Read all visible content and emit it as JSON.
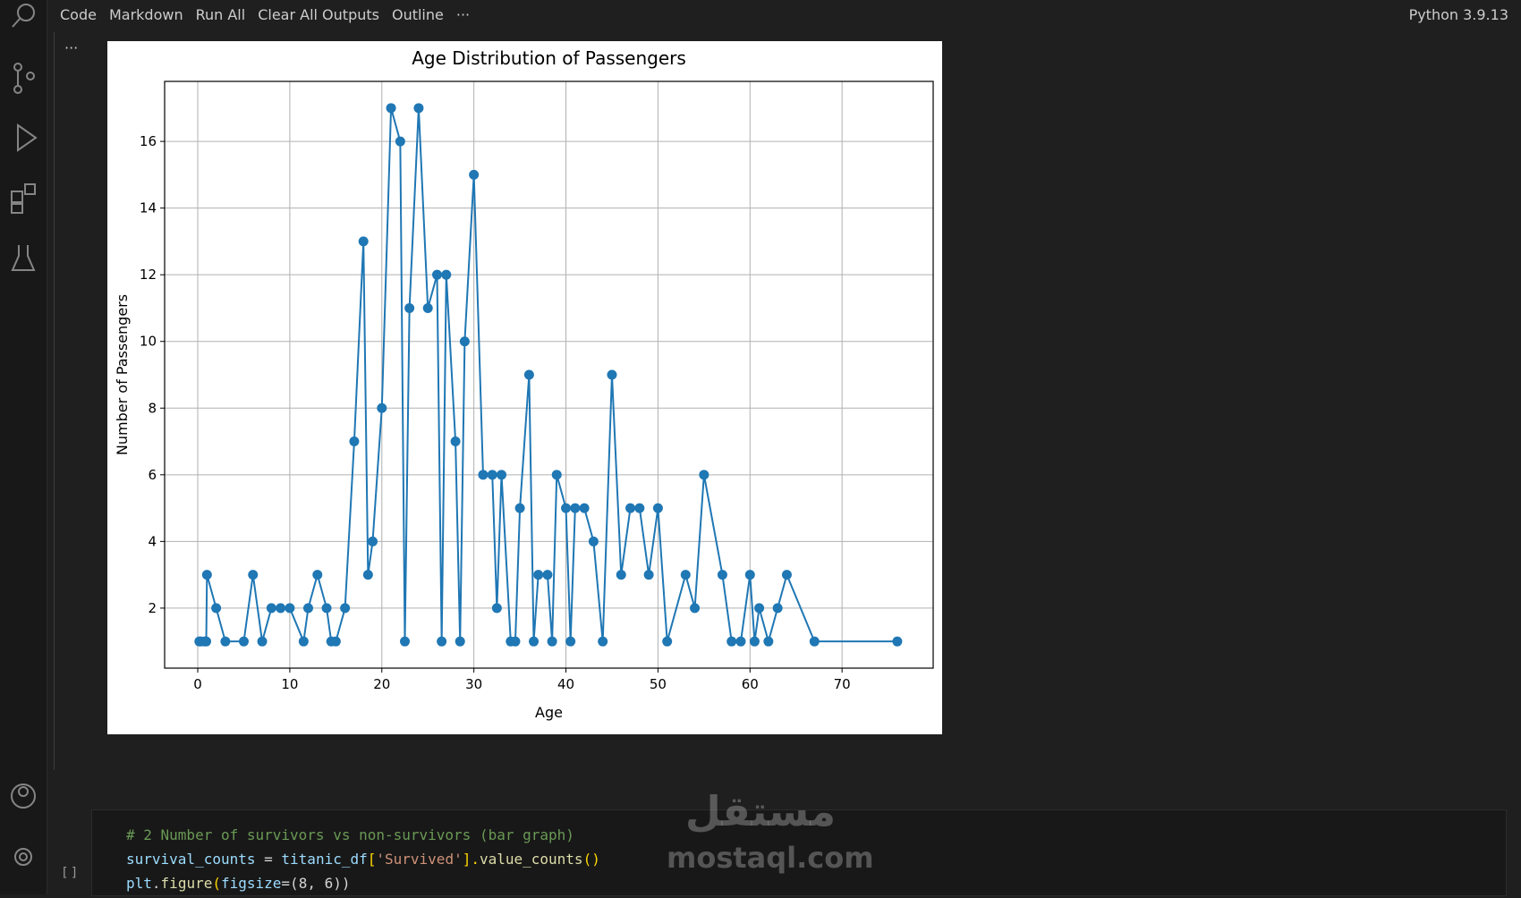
{
  "toolbar": {
    "items": [
      "Code",
      "Markdown",
      "Run All",
      "Clear All Outputs",
      "Outline"
    ],
    "more": "···",
    "kernel": "Python 3.9.13"
  },
  "output_more": "···",
  "chart_data": {
    "type": "line",
    "title": "Age Distribution of Passengers",
    "x_label": "Age",
    "y_label": "Number of Passengers",
    "x": [
      0.17,
      0.33,
      0.75,
      0.92,
      1,
      2,
      3,
      5,
      6,
      7,
      8,
      9,
      10,
      11.5,
      12,
      13,
      14,
      14.5,
      15,
      16,
      17,
      18,
      18.5,
      19,
      20,
      21,
      22,
      22.5,
      23,
      24,
      25,
      26,
      26.5,
      27,
      28,
      28.5,
      29,
      30,
      31,
      32,
      32.5,
      33,
      34,
      34.5,
      35,
      36,
      36.5,
      37,
      38,
      38.5,
      39,
      40,
      40.5,
      41,
      42,
      43,
      44,
      45,
      46,
      47,
      48,
      49,
      50,
      51,
      53,
      54,
      55,
      57,
      58,
      59,
      60,
      60.5,
      61,
      62,
      63,
      64,
      67,
      76
    ],
    "series": [
      {
        "name": "Age",
        "color": "#1f77b4",
        "values": [
          1,
          1,
          1,
          1,
          3,
          2,
          1,
          1,
          3,
          1,
          2,
          2,
          2,
          1,
          2,
          3,
          2,
          1,
          1,
          2,
          7,
          13,
          3,
          4,
          8,
          17,
          16,
          1,
          11,
          17,
          11,
          12,
          1,
          12,
          7,
          1,
          10,
          15,
          6,
          6,
          2,
          6,
          1,
          1,
          5,
          9,
          1,
          3,
          3,
          1,
          6,
          5,
          1,
          5,
          5,
          4,
          1,
          9,
          3,
          5,
          5,
          3,
          5,
          1,
          3,
          2,
          6,
          3,
          1,
          1,
          3,
          1,
          2,
          1,
          2,
          3,
          1,
          1
        ]
      }
    ],
    "xlim": [
      -3.6,
      79.9
    ],
    "ylim": [
      0.2,
      17.8
    ],
    "xticks": [
      0,
      10,
      20,
      30,
      40,
      50,
      60,
      70
    ],
    "yticks": [
      2,
      4,
      6,
      8,
      10,
      12,
      14,
      16
    ],
    "grid": true
  },
  "cell": {
    "status": "[ ]",
    "lines": [
      [
        {
          "text": "# 2 Number of survivors vs non-survivors (bar graph)",
          "color": "#6a9955"
        }
      ],
      [
        {
          "text": "survival_counts",
          "color": "#9cdcfe"
        },
        {
          "text": " = ",
          "color": "#d4d4d4"
        },
        {
          "text": "titanic_df",
          "color": "#9cdcfe"
        },
        {
          "text": "[",
          "color": "#ffd700"
        },
        {
          "text": "'Survived'",
          "color": "#ce9178"
        },
        {
          "text": "].",
          "color": "#ffd700"
        },
        {
          "text": "value_counts",
          "color": "#dcdcaa"
        },
        {
          "text": "()",
          "color": "#ffd700"
        }
      ],
      [
        {
          "text": "plt",
          "color": "#9cdcfe"
        },
        {
          "text": ".",
          "color": "#d4d4d4"
        },
        {
          "text": "figure",
          "color": "#dcdcaa"
        },
        {
          "text": "(",
          "color": "#ffd700"
        },
        {
          "text": "figsize",
          "color": "#9cdcfe"
        },
        {
          "text": "=(8, 6))",
          "color": "#d4d4d4"
        }
      ]
    ]
  },
  "watermark": {
    "logo": "مستقل",
    "site": "mostaql.com"
  }
}
